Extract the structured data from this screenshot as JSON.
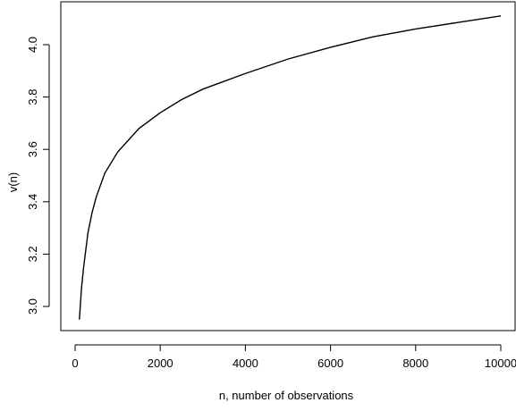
{
  "chart_data": {
    "type": "line",
    "title": "",
    "xlabel": "n, number of observations",
    "ylabel": "v(n)",
    "xlim": [
      0,
      10000
    ],
    "ylim": [
      2.93,
      4.13
    ],
    "xticks": [
      0,
      2000,
      4000,
      6000,
      8000,
      10000
    ],
    "yticks": [
      3.0,
      3.2,
      3.4,
      3.6,
      3.8,
      4.0
    ],
    "ytick_labels": [
      "3.0",
      "3.2",
      "3.4",
      "3.6",
      "3.8",
      "4.0"
    ],
    "grid": false,
    "series": [
      {
        "x": [
          100,
          150,
          200,
          300,
          400,
          500,
          700,
          1000,
          1500,
          2000,
          2500,
          3000,
          4000,
          5000,
          6000,
          7000,
          8000,
          9000,
          10000
        ],
        "y": [
          2.95,
          3.07,
          3.15,
          3.28,
          3.36,
          3.42,
          3.51,
          3.59,
          3.68,
          3.74,
          3.79,
          3.83,
          3.89,
          3.945,
          3.99,
          4.03,
          4.06,
          4.085,
          4.11
        ]
      }
    ]
  }
}
